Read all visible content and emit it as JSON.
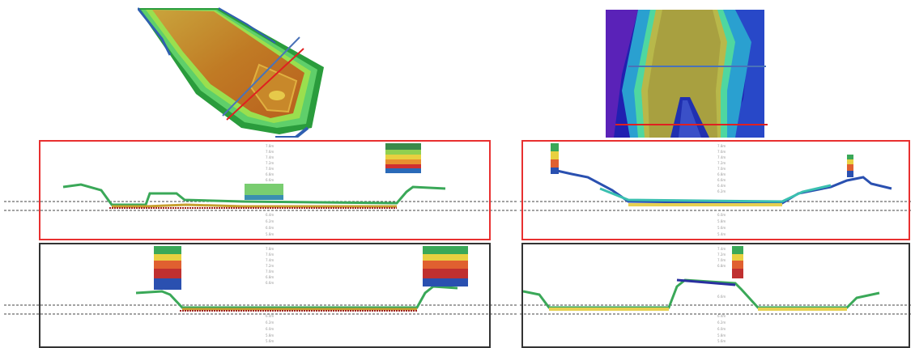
{
  "colors": {
    "profile_frame_red": "#e83030",
    "profile_frame_dark": "#333333",
    "section_line_red": "#e02020",
    "section_line_blue": "#4a72b8",
    "reference_line": "#444444"
  },
  "left_panel": {
    "ticks_upper": [
      "7.8m",
      "7.6m",
      "7.4m",
      "7.2m",
      "7.0m",
      "6.8m",
      "6.6m"
    ],
    "ticks_lower": [
      "6.4m",
      "6.2m",
      "6.0m",
      "5.8m"
    ],
    "ticks_lower_profile": [
      "7.8m",
      "7.6m",
      "7.4m",
      "7.2m",
      "7.0m",
      "6.8m",
      "6.6m",
      "6.4m",
      "6.2m",
      "6.0m",
      "5.8m",
      "5.6m"
    ]
  },
  "right_panel": {
    "ticks_upper": [
      "7.8m",
      "7.6m",
      "7.4m",
      "7.2m",
      "7.0m",
      "6.8m",
      "6.6m",
      "6.4m",
      "6.2m"
    ],
    "ticks_lower": [
      "6.0m",
      "5.8m",
      "5.6m",
      "5.4m"
    ],
    "ticks_lower_profile": [
      "7.4m",
      "7.2m",
      "7.0m",
      "6.8m",
      "6.6m",
      "6.4m",
      "6.2m",
      "6.0m",
      "5.8m",
      "5.6m"
    ]
  }
}
